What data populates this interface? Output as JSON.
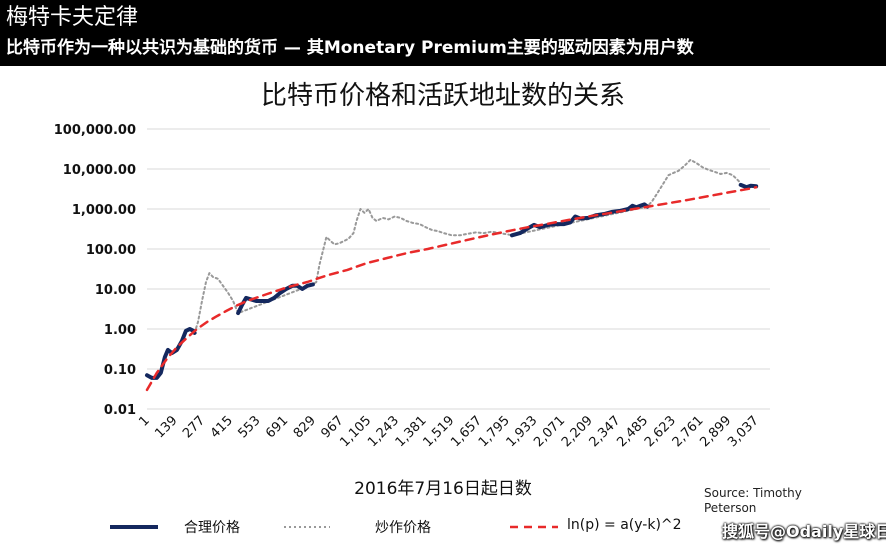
{
  "header": {
    "title": "梅特卡夫定律",
    "subtitle": "比特币作为一种以共识为基础的货币 — 其Monetary Premium主要的驱动因素为用户数"
  },
  "source_note": "Source: Timothy Peterson",
  "watermark": "搜狐号@Odaily星球日报",
  "colors": {
    "fair": "#14285e",
    "spec": "#999999",
    "fit": "#e82a2a"
  },
  "chart_data": {
    "type": "line",
    "title": "比特币价格和活跃地址数的关系",
    "xlabel": "2016年7月16日起日数",
    "ylabel": "",
    "yscale": "log",
    "ylim": [
      0.01,
      100000
    ],
    "xlim": [
      1,
      3037
    ],
    "grid": true,
    "y_ticks": [
      "0.01",
      "0.10",
      "1.00",
      "10.00",
      "100.00",
      "1,000.00",
      "10,000.00",
      "100,000.00"
    ],
    "x_ticks": [
      "1",
      "139",
      "277",
      "415",
      "553",
      "691",
      "829",
      "967",
      "1,105",
      "1,243",
      "1,381",
      "1,519",
      "1,657",
      "1,795",
      "1,933",
      "2,071",
      "2,209",
      "2,347",
      "2,485",
      "2,623",
      "2,761",
      "2,899",
      "3,037"
    ],
    "legend_position": "bottom",
    "series": [
      {
        "name": "合理价格",
        "style": "solid",
        "points": [
          [
            1,
            0.07
          ],
          [
            25,
            0.06
          ],
          [
            50,
            0.06
          ],
          [
            70,
            0.08
          ],
          [
            90,
            0.2
          ],
          [
            105,
            0.3
          ],
          [
            125,
            0.25
          ],
          [
            150,
            0.3
          ],
          [
            175,
            0.5
          ],
          [
            195,
            0.9
          ],
          [
            215,
            1.0
          ],
          [
            232,
            0.9
          ],
          [
            238,
            0.8
          ],
          [
            455,
            2.5
          ],
          [
            475,
            4.0
          ],
          [
            495,
            6.0
          ],
          [
            520,
            5.5
          ],
          [
            545,
            5.0
          ],
          [
            575,
            5.0
          ],
          [
            605,
            5.0
          ],
          [
            635,
            6.0
          ],
          [
            665,
            8.0
          ],
          [
            695,
            10.0
          ],
          [
            725,
            12.0
          ],
          [
            750,
            12.0
          ],
          [
            775,
            10.0
          ],
          [
            800,
            12.0
          ],
          [
            828,
            13.0
          ],
          [
            1820,
            220
          ],
          [
            1860,
            250
          ],
          [
            1900,
            330
          ],
          [
            1930,
            400
          ],
          [
            1960,
            350
          ],
          [
            2000,
            400
          ],
          [
            2040,
            420
          ],
          [
            2080,
            420
          ],
          [
            2110,
            460
          ],
          [
            2135,
            650
          ],
          [
            2160,
            580
          ],
          [
            2200,
            600
          ],
          [
            2240,
            700
          ],
          [
            2280,
            750
          ],
          [
            2320,
            850
          ],
          [
            2360,
            900
          ],
          [
            2400,
            1000
          ],
          [
            2420,
            1200
          ],
          [
            2440,
            1100
          ],
          [
            2460,
            1200
          ],
          [
            2480,
            1300
          ],
          [
            2495,
            1150
          ],
          [
            2960,
            4000
          ],
          [
            2990,
            3500
          ],
          [
            3010,
            3800
          ],
          [
            3037,
            3700
          ]
        ]
      },
      {
        "name": "炒作价格",
        "style": "dotted",
        "points": [
          [
            238,
            0.8
          ],
          [
            255,
            1.5
          ],
          [
            275,
            5.0
          ],
          [
            295,
            15
          ],
          [
            312,
            25
          ],
          [
            330,
            20
          ],
          [
            355,
            18
          ],
          [
            380,
            12
          ],
          [
            405,
            8.0
          ],
          [
            430,
            5.0
          ],
          [
            455,
            2.5
          ],
          [
            828,
            13.0
          ],
          [
            845,
            15
          ],
          [
            860,
            40
          ],
          [
            880,
            100
          ],
          [
            895,
            200
          ],
          [
            915,
            160
          ],
          [
            935,
            130
          ],
          [
            960,
            140
          ],
          [
            985,
            160
          ],
          [
            1005,
            180
          ],
          [
            1030,
            250
          ],
          [
            1045,
            500
          ],
          [
            1065,
            1000
          ],
          [
            1085,
            800
          ],
          [
            1105,
            1000
          ],
          [
            1125,
            600
          ],
          [
            1145,
            500
          ],
          [
            1175,
            600
          ],
          [
            1205,
            550
          ],
          [
            1235,
            650
          ],
          [
            1265,
            600
          ],
          [
            1295,
            500
          ],
          [
            1325,
            450
          ],
          [
            1360,
            420
          ],
          [
            1390,
            350
          ],
          [
            1420,
            300
          ],
          [
            1450,
            280
          ],
          [
            1480,
            250
          ],
          [
            1520,
            220
          ],
          [
            1560,
            220
          ],
          [
            1600,
            240
          ],
          [
            1640,
            260
          ],
          [
            1680,
            250
          ],
          [
            1720,
            270
          ],
          [
            1760,
            250
          ],
          [
            1800,
            230
          ],
          [
            1820,
            220
          ],
          [
            2495,
            1150
          ],
          [
            2520,
            1600
          ],
          [
            2545,
            2500
          ],
          [
            2570,
            4000
          ],
          [
            2600,
            7000
          ],
          [
            2625,
            8000
          ],
          [
            2650,
            9000
          ],
          [
            2680,
            12000
          ],
          [
            2710,
            17000
          ],
          [
            2740,
            14000
          ],
          [
            2770,
            11000
          ],
          [
            2800,
            9500
          ],
          [
            2830,
            8500
          ],
          [
            2860,
            7500
          ],
          [
            2890,
            8000
          ],
          [
            2920,
            7000
          ],
          [
            2950,
            5000
          ],
          [
            2960,
            4000
          ]
        ]
      },
      {
        "name": "ln(p) = a(y-k)^2",
        "style": "dashed",
        "points": [
          [
            1,
            0.03
          ],
          [
            50,
            0.08
          ],
          [
            100,
            0.18
          ],
          [
            150,
            0.35
          ],
          [
            200,
            0.6
          ],
          [
            250,
            1.0
          ],
          [
            300,
            1.5
          ],
          [
            350,
            2.1
          ],
          [
            400,
            2.9
          ],
          [
            450,
            3.9
          ],
          [
            500,
            5.0
          ],
          [
            600,
            7.5
          ],
          [
            700,
            11
          ],
          [
            800,
            15
          ],
          [
            900,
            22
          ],
          [
            1000,
            30
          ],
          [
            1100,
            45
          ],
          [
            1200,
            60
          ],
          [
            1300,
            80
          ],
          [
            1400,
            100
          ],
          [
            1500,
            130
          ],
          [
            1600,
            170
          ],
          [
            1700,
            220
          ],
          [
            1800,
            280
          ],
          [
            1900,
            350
          ],
          [
            2000,
            430
          ],
          [
            2100,
            530
          ],
          [
            2200,
            650
          ],
          [
            2300,
            780
          ],
          [
            2400,
            950
          ],
          [
            2500,
            1150
          ],
          [
            2600,
            1400
          ],
          [
            2700,
            1700
          ],
          [
            2800,
            2100
          ],
          [
            2900,
            2600
          ],
          [
            3000,
            3200
          ],
          [
            3037,
            3500
          ]
        ]
      }
    ]
  }
}
